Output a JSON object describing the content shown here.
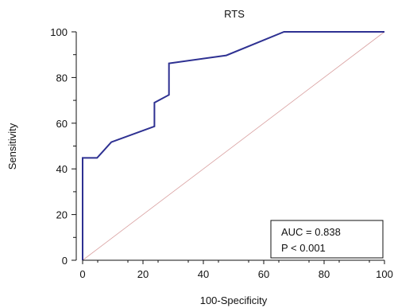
{
  "chart_data": {
    "type": "line",
    "title": "RTS",
    "xlabel": "100-Specificity",
    "ylabel": "Sensitivity",
    "xlim": [
      0,
      100
    ],
    "ylim": [
      0,
      100
    ],
    "x_ticks": [
      0,
      20,
      40,
      60,
      80,
      100
    ],
    "y_ticks": [
      0,
      20,
      40,
      60,
      80,
      100
    ],
    "grid": false,
    "series": [
      {
        "color": "#2e3192",
        "x": [
          0,
          0,
          4.8,
          9.5,
          23.8,
          23.8,
          28.6,
          28.6,
          47.6,
          66.7,
          100
        ],
        "y": [
          0,
          44.8,
          44.8,
          51.7,
          58.6,
          69.0,
          72.4,
          86.2,
          89.7,
          100,
          100
        ]
      }
    ],
    "reference_line": {
      "color": "#d9a0a0",
      "x": [
        0,
        100
      ],
      "y": [
        0,
        100
      ]
    },
    "annotation": {
      "lines": [
        "AUC = 0.838",
        "P < 0.001"
      ],
      "placement": "bottom-right"
    }
  }
}
